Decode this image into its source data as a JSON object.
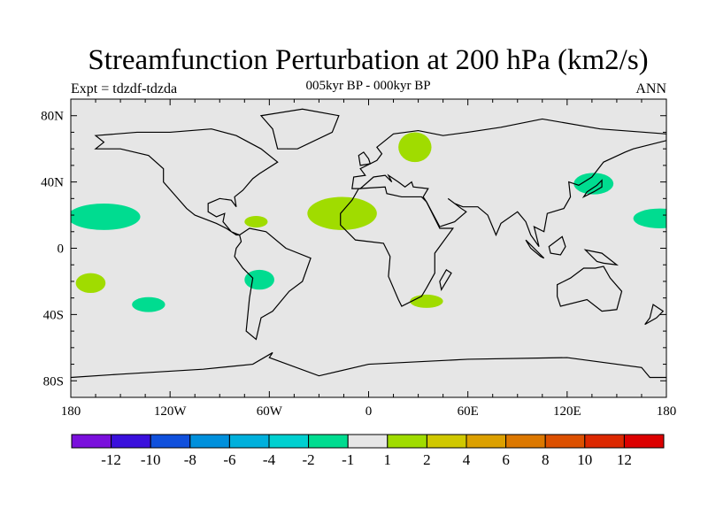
{
  "title": "Streamfunction Perturbation at 200 hPa (km2/s)",
  "left_string": "Expt = tdzdf-tdzda",
  "center_string": "005kyr BP - 000kyr BP",
  "right_string": "ANN",
  "map": {
    "projection": "cylindrical-equidistant",
    "lon_range": [
      -180,
      180
    ],
    "lat_range": [
      -90,
      90
    ],
    "background_color": "#e6e6e6",
    "lon_ticks": [
      {
        "v": -180,
        "label": "180"
      },
      {
        "v": -120,
        "label": "120W"
      },
      {
        "v": -60,
        "label": "60W"
      },
      {
        "v": 0,
        "label": "0"
      },
      {
        "v": 60,
        "label": "60E"
      },
      {
        "v": 120,
        "label": "120E"
      },
      {
        "v": 180,
        "label": "180"
      }
    ],
    "lat_ticks": [
      {
        "v": 80,
        "label": "80N"
      },
      {
        "v": 40,
        "label": "40N"
      },
      {
        "v": 0,
        "label": "0"
      },
      {
        "v": -40,
        "label": "40S"
      },
      {
        "v": -80,
        "label": "80S"
      }
    ],
    "anomalies": [
      {
        "name": "north-pacific",
        "lon": -160,
        "lat": 19,
        "dlon": 22,
        "dlat": 8,
        "color": "#00dc90"
      },
      {
        "name": "west-pacific-east-edge",
        "lon": 176,
        "lat": 18,
        "dlon": 16,
        "dlat": 6,
        "color": "#00dc90"
      },
      {
        "name": "caribbean",
        "lon": -68,
        "lat": 16,
        "dlon": 7,
        "dlat": 3.5,
        "color": "#a0dc00"
      },
      {
        "name": "tropical-atlantic",
        "lon": -16,
        "lat": 21,
        "dlon": 21,
        "dlat": 10,
        "color": "#a0dc00"
      },
      {
        "name": "scandinavia",
        "lon": 28,
        "lat": 61,
        "dlon": 10,
        "dlat": 9,
        "color": "#a0dc00"
      },
      {
        "name": "east-asia",
        "lon": 136,
        "lat": 39,
        "dlon": 12,
        "dlat": 6.5,
        "color": "#00dc90"
      },
      {
        "name": "south-pacific-west",
        "lon": -168,
        "lat": -21,
        "dlon": 9,
        "dlat": 6,
        "color": "#a0dc00"
      },
      {
        "name": "south-pacific-east",
        "lon": -133,
        "lat": -34,
        "dlon": 10,
        "dlat": 4.5,
        "color": "#00dc90"
      },
      {
        "name": "south-america",
        "lon": -66,
        "lat": -19,
        "dlon": 9,
        "dlat": 6,
        "color": "#00dc90"
      },
      {
        "name": "south-africa",
        "lon": 35,
        "lat": -32,
        "dlon": 10,
        "dlat": 4,
        "color": "#a0dc00"
      }
    ]
  },
  "colorbar": {
    "colors": [
      "#7a10dc",
      "#3a10dc",
      "#1050dc",
      "#0090dc",
      "#00b0dc",
      "#00d0d0",
      "#00dc90",
      "#e6e6e6",
      "#a0dc00",
      "#d0c800",
      "#dca000",
      "#dc7800",
      "#dc5000",
      "#dc2800",
      "#dc0000"
    ],
    "labels": [
      "-12",
      "-10",
      "-8",
      "-6",
      "-4",
      "-2",
      "-1",
      "1",
      "2",
      "4",
      "6",
      "8",
      "10",
      "12"
    ]
  }
}
